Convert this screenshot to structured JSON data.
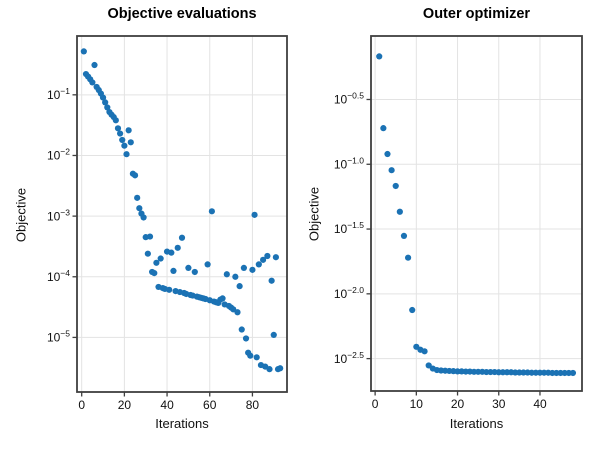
{
  "figure": {
    "background": "#ffffff"
  },
  "style": {
    "marker_color": "#1b72b4",
    "grid_color": "#e3e3e3",
    "spine_color": "#3f3f3f",
    "tick_text_color": "#111111",
    "marker_radius": 3.1
  },
  "chart_data": [
    {
      "type": "scatter",
      "title": "Objective evaluations",
      "xlabel": "Iterations",
      "ylabel": "Objective",
      "yscale": "log10",
      "grid": true,
      "xlim": [
        -2.2,
        96.2
      ],
      "ylim_log10": [
        -5.9,
        -0.03
      ],
      "xticks": [
        0,
        20,
        40,
        60,
        80
      ],
      "yticks": [
        {
          "exp": -1,
          "label": "−1"
        },
        {
          "exp": -2,
          "label": "−2"
        },
        {
          "exp": -3,
          "label": "−3"
        },
        {
          "exp": -4,
          "label": "−4"
        },
        {
          "exp": -5,
          "label": "−5"
        }
      ],
      "x": [
        1,
        2,
        3,
        4,
        5,
        6,
        7,
        8,
        9,
        10,
        11,
        12,
        13,
        14,
        15,
        16,
        17,
        18,
        19,
        20,
        21,
        22,
        23,
        24,
        25,
        26,
        27,
        28,
        29,
        30,
        31,
        32,
        33,
        34,
        35,
        36,
        37,
        38,
        39,
        40,
        41,
        42,
        43,
        44,
        45,
        46,
        47,
        48,
        49,
        50,
        51,
        52,
        53,
        54,
        55,
        56,
        57,
        58,
        59,
        60,
        61,
        62,
        63,
        64,
        65,
        66,
        67,
        68,
        69,
        70,
        71,
        72,
        73,
        74,
        75,
        76,
        77,
        78,
        79,
        80,
        81,
        82,
        83,
        84,
        85,
        86,
        87,
        88,
        89,
        90,
        91,
        92,
        93
      ],
      "y": [
        0.52,
        0.22,
        0.2,
        0.18,
        0.16,
        0.31,
        0.135,
        0.12,
        0.105,
        0.09,
        0.075,
        0.062,
        0.052,
        0.047,
        0.043,
        0.038,
        0.028,
        0.023,
        0.018,
        0.0145,
        0.0105,
        0.026,
        0.0165,
        0.005,
        0.0047,
        0.002,
        0.00135,
        0.0011,
        0.00095,
        0.00045,
        0.00024,
        0.00046,
        0.00012,
        0.000115,
        0.00017,
        6.8e-05,
        0.0002,
        6.5e-05,
        6.3e-05,
        0.00026,
        6.1e-05,
        0.00025,
        0.000125,
        5.8e-05,
        0.0003,
        5.6e-05,
        0.00044,
        5.4e-05,
        5.2e-05,
        0.00014,
        5e-05,
        4.9e-05,
        0.00012,
        4.7e-05,
        4.6e-05,
        4.5e-05,
        4.4e-05,
        4.3e-05,
        0.00016,
        4.1e-05,
        0.0012,
        3.9e-05,
        3.8e-05,
        3.7e-05,
        4.2e-05,
        4.4e-05,
        3.5e-05,
        0.00011,
        3.3e-05,
        3.1e-05,
        2.9e-05,
        0.0001,
        2.6e-05,
        7e-05,
        1.35e-05,
        0.00014,
        9.6e-06,
        5.6e-06,
        5e-06,
        0.00013,
        0.00105,
        4.7e-06,
        0.00016,
        3.5e-06,
        0.00019,
        3.3e-06,
        0.00022,
        3e-06,
        8.6e-05,
        1.1e-05,
        0.00021,
        3e-06,
        3.1e-06
      ]
    },
    {
      "type": "scatter",
      "title": "Outer optimizer",
      "xlabel": "Iterations",
      "ylabel": "Objective",
      "yscale": "log10",
      "grid": true,
      "xlim": [
        -1,
        50.2
      ],
      "ylim_log10": [
        -2.75,
        -0.01
      ],
      "xticks": [
        0,
        10,
        20,
        30,
        40
      ],
      "yticks": [
        {
          "exp": -0.5,
          "label": "−0.5"
        },
        {
          "exp": -1.0,
          "label": "−1.0"
        },
        {
          "exp": -1.5,
          "label": "−1.5"
        },
        {
          "exp": -2.0,
          "label": "−2.0"
        },
        {
          "exp": -2.5,
          "label": "−2.5"
        }
      ],
      "x": [
        1,
        2,
        3,
        4,
        5,
        6,
        7,
        8,
        9,
        10,
        11,
        12,
        13,
        14,
        15,
        16,
        17,
        18,
        19,
        20,
        21,
        22,
        23,
        24,
        25,
        26,
        27,
        28,
        29,
        30,
        31,
        32,
        33,
        34,
        35,
        36,
        37,
        38,
        39,
        40,
        41,
        42,
        43,
        44,
        45,
        46,
        47,
        48
      ],
      "y": [
        0.68,
        0.19,
        0.12,
        0.09,
        0.068,
        0.043,
        0.028,
        0.019,
        0.0075,
        0.0039,
        0.0037,
        0.0036,
        0.0028,
        0.00265,
        0.00258,
        0.00256,
        0.00255,
        0.00254,
        0.00253,
        0.00252,
        0.00252,
        0.00251,
        0.00251,
        0.0025,
        0.0025,
        0.0025,
        0.00249,
        0.00249,
        0.00249,
        0.00248,
        0.00248,
        0.00248,
        0.00248,
        0.00247,
        0.00247,
        0.00247,
        0.00247,
        0.00246,
        0.00246,
        0.00246,
        0.00246,
        0.00246,
        0.00245,
        0.00245,
        0.00245,
        0.00245,
        0.00245,
        0.00245
      ]
    }
  ]
}
